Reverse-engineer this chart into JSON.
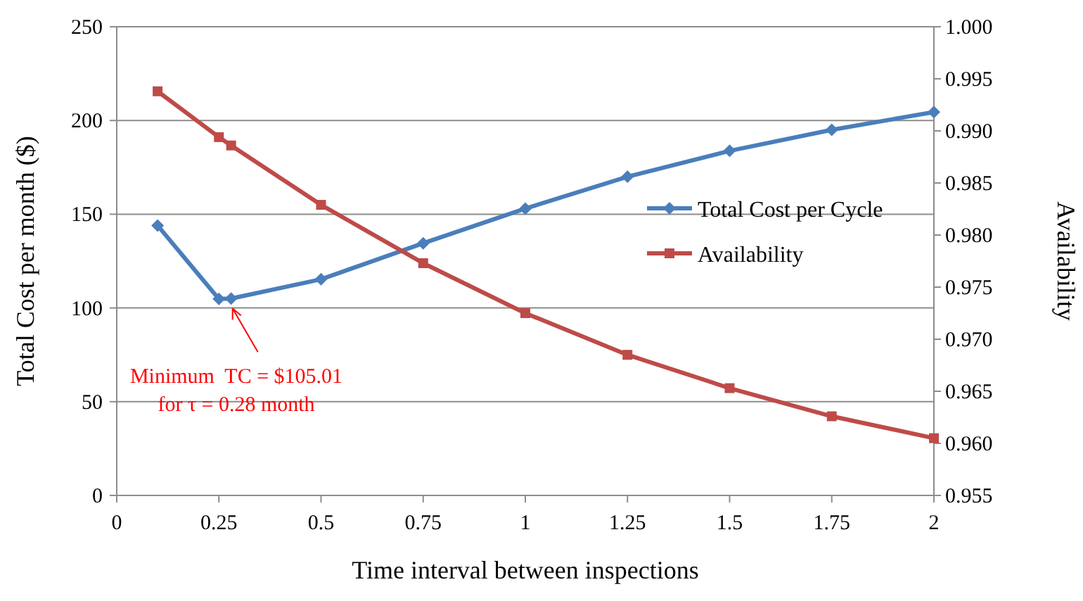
{
  "chart_data": {
    "type": "line",
    "xlabel": "Time interval between inspections",
    "ylabel": "Total Cost per month ($)",
    "y2label": "Availability",
    "xlim": [
      0,
      2
    ],
    "xticks": [
      0,
      0.25,
      0.5,
      0.75,
      1,
      1.25,
      1.5,
      1.75,
      2
    ],
    "ylim": [
      0,
      250
    ],
    "yticks": [
      0,
      50,
      100,
      150,
      200,
      250
    ],
    "y2lim": [
      0.955,
      1
    ],
    "y2ticks": [
      {
        "value": 0.955,
        "label": "0.955"
      },
      {
        "value": 0.96,
        "label": "0.960"
      },
      {
        "value": 0.965,
        "label": "0.965"
      },
      {
        "value": 0.97,
        "label": "0.970"
      },
      {
        "value": 0.975,
        "label": "0.975"
      },
      {
        "value": 0.98,
        "label": "0.980"
      },
      {
        "value": 0.985,
        "label": "0.985"
      },
      {
        "value": 0.99,
        "label": "0.990"
      },
      {
        "value": 0.995,
        "label": "0.995"
      },
      {
        "value": 1,
        "label": "1.000"
      }
    ],
    "grid": "y",
    "legend": "right",
    "x": [
      0.1,
      0.25,
      0.28,
      0.5,
      0.75,
      1,
      1.25,
      1.5,
      1.75,
      2
    ],
    "series": [
      {
        "name": "Total Cost per Cycle",
        "color": "#4a7ebb",
        "marker": "diamond",
        "values": [
          144,
          104.8,
          105,
          115.3,
          134.5,
          153,
          170,
          183.8,
          195,
          204.5
        ]
      },
      {
        "name": "Availability",
        "color": "#be4b48",
        "marker": "square",
        "axis": "y2",
        "values": [
          0.9938,
          0.9894,
          0.9886,
          0.9829,
          0.9773,
          0.9725,
          0.9685,
          0.9653,
          0.9626,
          0.9605
        ]
      }
    ],
    "annotations": [
      {
        "text": "Minimum  TC = $105.01\nfor τ = 0.28 month",
        "x": 0.28,
        "y": 105
      }
    ]
  }
}
